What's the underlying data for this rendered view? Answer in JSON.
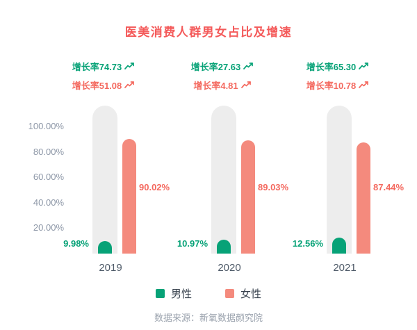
{
  "title": "医美消费人群男女占比及增速",
  "footer": "数据来源：新氧数据颜究院",
  "legend": [
    {
      "label": "男性",
      "color": "#07a277"
    },
    {
      "label": "女性",
      "color": "#f48a7d"
    }
  ],
  "colors": {
    "title": "#f45a5a",
    "male": "#07a277",
    "female": "#f48a7d",
    "female_text": "#f4695f",
    "track": "#ededed",
    "tick_text": "#8c96a6",
    "year_text": "#4e5a68",
    "legend_text": "#38424e",
    "footer_text": "#9aa2ad"
  },
  "chart_data": {
    "type": "bar",
    "title": "医美消费人群男女占比及增速",
    "categories": [
      "2019",
      "2020",
      "2021"
    ],
    "series": [
      {
        "name": "男性",
        "values": [
          9.98,
          10.97,
          12.56
        ],
        "value_labels": [
          "9.98%",
          "10.97%",
          "12.56%"
        ],
        "growth": [
          74.73,
          27.63,
          65.3
        ],
        "growth_labels": [
          "增长率74.73",
          "增长率27.63",
          "增长率65.30"
        ]
      },
      {
        "name": "女性",
        "values": [
          90.02,
          89.03,
          87.44
        ],
        "value_labels": [
          "90.02%",
          "89.03%",
          "87.44%"
        ],
        "growth": [
          51.08,
          4.81,
          10.78
        ],
        "growth_labels": [
          "增长率51.08",
          "增长率4.81",
          "增长率10.78"
        ]
      }
    ],
    "y_ticks": [
      "100.00%",
      "80.00%",
      "60.00%",
      "40.00%",
      "20.00%"
    ],
    "y_tick_values": [
      100,
      80,
      60,
      40,
      20
    ],
    "ylim": [
      0,
      100
    ],
    "grid": false,
    "legend_position": "bottom"
  }
}
